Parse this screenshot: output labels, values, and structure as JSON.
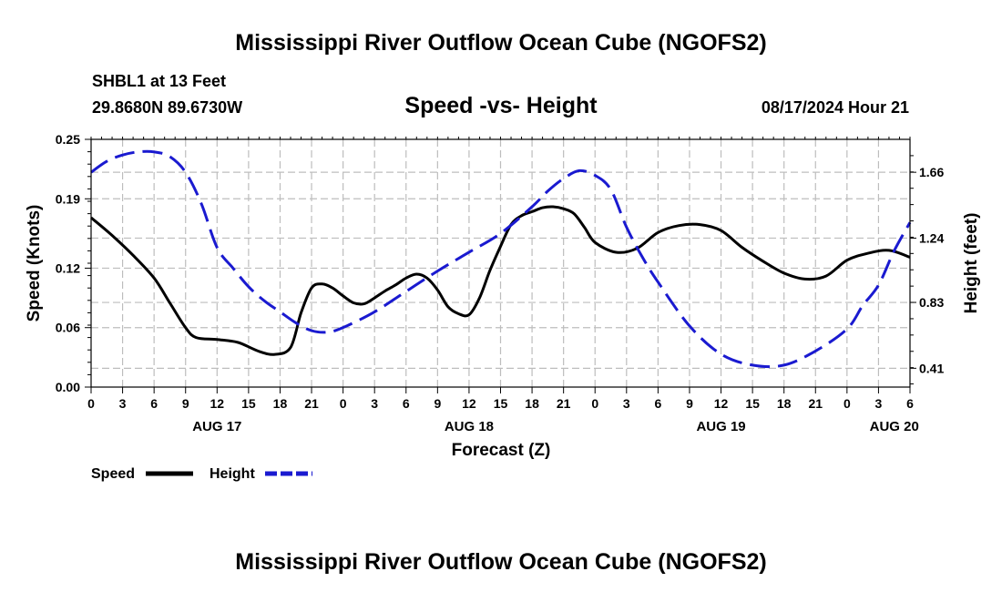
{
  "title": "Mississippi River Outflow Ocean Cube (NGOFS2)",
  "footer_title": "Mississippi River Outflow Ocean Cube (NGOFS2)",
  "station": "SHBL1 at 13 Feet",
  "coordinates": "29.8680N  89.6730W",
  "subtitle": "Speed -vs- Height",
  "datetime": "08/17/2024 Hour 21",
  "legend": {
    "speed": "Speed",
    "height": "Height"
  },
  "colors": {
    "speed": "#000000",
    "height": "#1a1ad0",
    "grid": "#bdbdbd"
  },
  "chart_data": {
    "type": "line",
    "title": "Speed -vs- Height",
    "xlabel": "Forecast (Z)",
    "ylabel_left": "Speed (Knots)",
    "ylabel_right": "Height (feet)",
    "x_unit": "forecast hour",
    "xlim": [
      0,
      78
    ],
    "x_ticks": [
      0,
      3,
      6,
      9,
      12,
      15,
      18,
      21,
      24,
      27,
      30,
      33,
      36,
      39,
      42,
      45,
      48,
      51,
      54,
      57,
      60,
      63,
      66,
      69,
      72,
      75,
      78
    ],
    "x_tick_labels": [
      "0",
      "3",
      "6",
      "9",
      "12",
      "15",
      "18",
      "21",
      "0",
      "3",
      "6",
      "9",
      "12",
      "15",
      "18",
      "21",
      "0",
      "3",
      "6",
      "9",
      "12",
      "15",
      "18",
      "21",
      "0",
      "3",
      "6"
    ],
    "date_labels": [
      {
        "label": "AUG 17",
        "x": 12
      },
      {
        "label": "AUG 18",
        "x": 36
      },
      {
        "label": "AUG 19",
        "x": 60
      },
      {
        "label": "AUG 20",
        "x": 76.5
      }
    ],
    "ylim_left": [
      0,
      0.25
    ],
    "yticks_left": [
      "0.00",
      "0.06",
      "0.12",
      "0.19",
      "0.25"
    ],
    "ylim_right": [
      0.29,
      1.87
    ],
    "yticks_right": [
      "0.41",
      "0.83",
      "1.24",
      "1.66"
    ],
    "grid": true,
    "series": [
      {
        "name": "Speed",
        "axis": "left",
        "style": "solid",
        "x": [
          0,
          2,
          4,
          6,
          7.5,
          9,
          10,
          12,
          14,
          16,
          17.5,
          19,
          20,
          21,
          22,
          23,
          24,
          25,
          26,
          27,
          28,
          29,
          30,
          31,
          32,
          33,
          34,
          35,
          36,
          37,
          38,
          39,
          40,
          41,
          42,
          43,
          44,
          45,
          46,
          47,
          48,
          50,
          52,
          54,
          56,
          58,
          60,
          62,
          64,
          66,
          68,
          70,
          72,
          74,
          76,
          78
        ],
        "values": [
          0.171,
          0.153,
          0.133,
          0.11,
          0.085,
          0.06,
          0.05,
          0.048,
          0.045,
          0.036,
          0.033,
          0.04,
          0.075,
          0.1,
          0.104,
          0.1,
          0.092,
          0.085,
          0.084,
          0.09,
          0.097,
          0.103,
          0.11,
          0.114,
          0.11,
          0.098,
          0.081,
          0.074,
          0.073,
          0.09,
          0.118,
          0.142,
          0.164,
          0.173,
          0.177,
          0.181,
          0.182,
          0.18,
          0.175,
          0.161,
          0.146,
          0.136,
          0.14,
          0.156,
          0.163,
          0.164,
          0.158,
          0.141,
          0.127,
          0.115,
          0.109,
          0.112,
          0.128,
          0.135,
          0.138,
          0.131
        ]
      },
      {
        "name": "Height",
        "axis": "right",
        "style": "dashed",
        "x": [
          0,
          1.5,
          3,
          4.5,
          6,
          7.5,
          9,
          10.5,
          12,
          13.5,
          15,
          16.5,
          18,
          19.5,
          21,
          22.5,
          24,
          27,
          30,
          33,
          36,
          39,
          42,
          43.5,
          45,
          46.5,
          48,
          49.5,
          51,
          52.5,
          54,
          57,
          60,
          63,
          66,
          69,
          72,
          73.5,
          75,
          76.5,
          78
        ],
        "values": [
          1.66,
          1.73,
          1.77,
          1.79,
          1.79,
          1.76,
          1.66,
          1.46,
          1.18,
          1.05,
          0.93,
          0.84,
          0.77,
          0.7,
          0.65,
          0.64,
          0.67,
          0.77,
          0.9,
          1.03,
          1.15,
          1.27,
          1.44,
          1.54,
          1.62,
          1.67,
          1.64,
          1.55,
          1.31,
          1.12,
          0.96,
          0.68,
          0.5,
          0.43,
          0.43,
          0.52,
          0.66,
          0.81,
          0.94,
          1.16,
          1.34
        ]
      }
    ]
  }
}
